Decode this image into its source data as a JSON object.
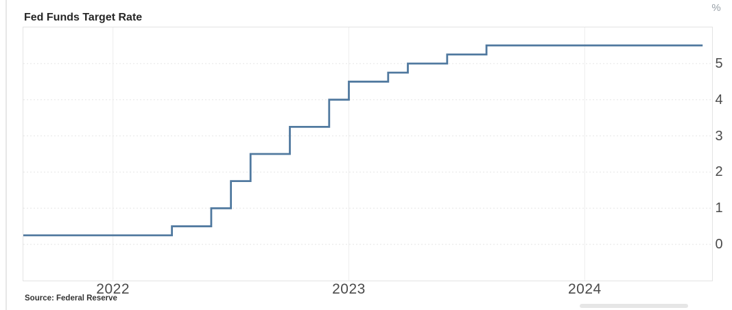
{
  "chart": {
    "title": "Fed Funds Target Rate",
    "unit": "%",
    "source": "Source: Federal Reserve"
  },
  "chart_data": {
    "type": "line",
    "line_style": "step",
    "title": "Fed Funds Target Rate",
    "ylabel": "%",
    "source": "Federal Reserve",
    "legend": "none",
    "grid": true,
    "line_color": "#50799f",
    "x_tick_years": [
      2022,
      2023,
      2024
    ],
    "y_ticks": [
      0,
      1,
      2,
      3,
      4,
      5
    ],
    "x_domain_decimal_years": [
      2021.62,
      2024.54
    ],
    "y_domain": [
      -1,
      6
    ],
    "series": [
      {
        "name": "Fed Funds Target Rate (%)",
        "points": [
          {
            "month": "2021-08",
            "rate": 0.25
          },
          {
            "month": "2022-04",
            "rate": 0.5
          },
          {
            "month": "2022-06",
            "rate": 1.0
          },
          {
            "month": "2022-07",
            "rate": 1.75
          },
          {
            "month": "2022-08",
            "rate": 2.5
          },
          {
            "month": "2022-10",
            "rate": 3.25
          },
          {
            "month": "2022-12",
            "rate": 4.0
          },
          {
            "month": "2023-01",
            "rate": 4.5
          },
          {
            "month": "2023-03",
            "rate": 4.75
          },
          {
            "month": "2023-04",
            "rate": 5.0
          },
          {
            "month": "2023-06",
            "rate": 5.25
          },
          {
            "month": "2023-08",
            "rate": 5.5
          },
          {
            "month": "2024-07",
            "rate": 5.5
          }
        ]
      }
    ]
  }
}
